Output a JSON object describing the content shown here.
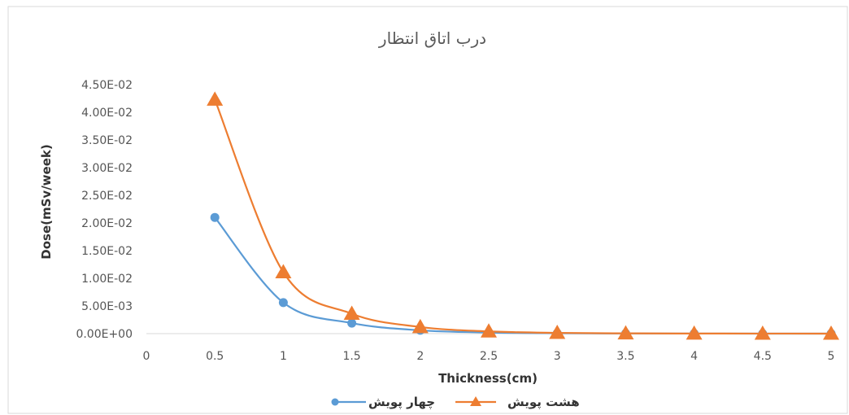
{
  "chart_data": {
    "type": "line",
    "title": "درب اتاق انتظار",
    "xlabel": "Thickness(cm)",
    "ylabel": "Dose(mSv/week)",
    "x_ticks": [
      "0",
      "0.5",
      "1",
      "1.5",
      "2",
      "2.5",
      "3",
      "3.5",
      "4",
      "4.5",
      "5"
    ],
    "y_ticks": [
      "0.00E+00",
      "5.00E-03",
      "1.00E-02",
      "1.50E-02",
      "2.00E-02",
      "2.50E-02",
      "3.00E-02",
      "3.50E-02",
      "4.00E-02",
      "4.50E-02"
    ],
    "xlim": [
      0,
      5
    ],
    "ylim": [
      0,
      0.045
    ],
    "x": [
      0.5,
      1,
      1.5,
      2,
      2.5,
      3,
      3.5,
      4,
      4.5,
      5
    ],
    "series": [
      {
        "name": "چهار پویش",
        "color": "#5b9bd5",
        "marker": "circle",
        "values": [
          0.021,
          0.0056,
          0.0019,
          0.0006,
          0.0002,
          7e-05,
          3e-05,
          1e-05,
          5e-06,
          2e-06
        ]
      },
      {
        "name": "هشت پویش",
        "color": "#ed7d31",
        "marker": "triangle",
        "values": [
          0.0423,
          0.0111,
          0.0036,
          0.0012,
          0.0004,
          0.00014,
          5e-05,
          2e-05,
          8e-06,
          3e-06
        ]
      }
    ],
    "legend_position": "bottom",
    "grid": false
  }
}
